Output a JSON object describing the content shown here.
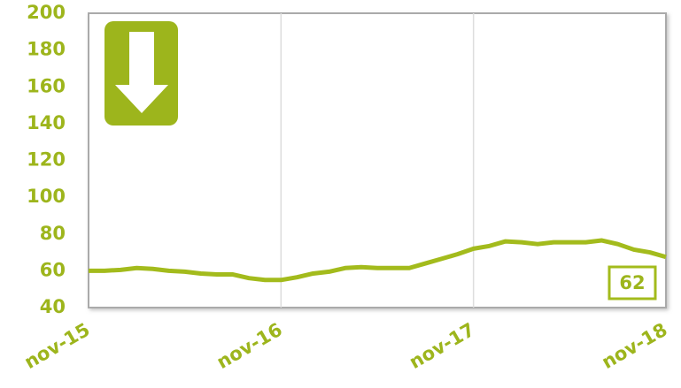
{
  "chart_data": {
    "type": "line",
    "categories": [
      "nov-15",
      null,
      null,
      null,
      null,
      null,
      null,
      null,
      null,
      null,
      null,
      null,
      "nov-16",
      null,
      null,
      null,
      null,
      null,
      null,
      null,
      null,
      null,
      null,
      null,
      "nov-17",
      null,
      null,
      null,
      null,
      null,
      null,
      null,
      null,
      null,
      null,
      null,
      "nov-18"
    ],
    "values": [
      60,
      60,
      60.5,
      61.5,
      61,
      60,
      59.5,
      58.5,
      58,
      58,
      56,
      55,
      55,
      56.5,
      58.5,
      59.5,
      61.5,
      62,
      61.5,
      61.5,
      61.5,
      64,
      66.5,
      69,
      72,
      73.5,
      76,
      75.5,
      74.5,
      75.5,
      75.5,
      75.5,
      76.5,
      74.5,
      71.5,
      70,
      67.5
    ],
    "color": "#a3bb1c",
    "ylim": [
      40,
      200
    ],
    "yticks": [
      40,
      60,
      80,
      100,
      120,
      140,
      160,
      180,
      200
    ],
    "grid": "x",
    "annotation": "62"
  }
}
